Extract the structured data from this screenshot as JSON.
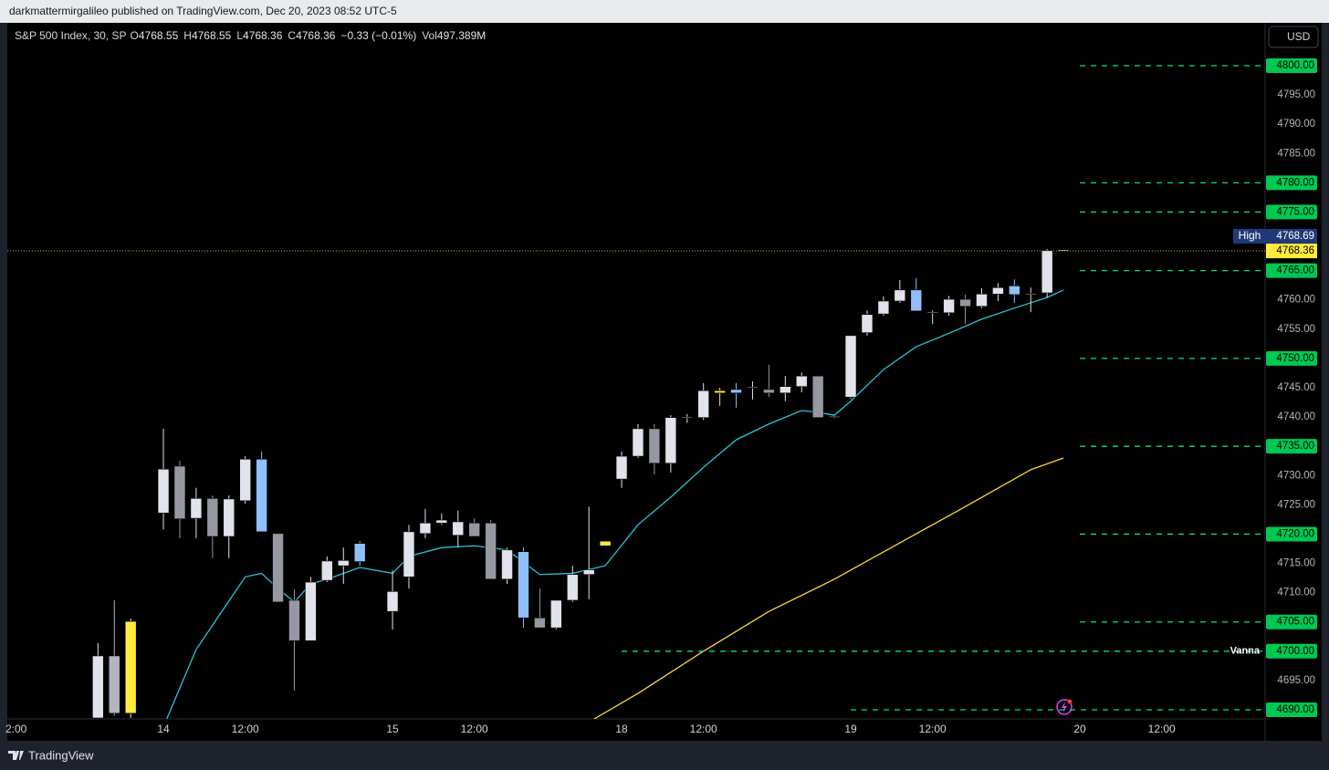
{
  "header": {
    "text": "darkmattermirgalileo published on TradingView.com, Dec 20, 2023 08:52 UTC-5"
  },
  "legend": {
    "symbol": "S&P 500 Index, 30, SP",
    "items": [
      {
        "key": "O",
        "value": 4768.55
      },
      {
        "key": "H",
        "value": 4768.55
      },
      {
        "key": "L",
        "value": 4768.36
      },
      {
        "key": "C",
        "value": 4768.36
      }
    ],
    "change": "−0.33 (−0.01%)",
    "volume_key": "Vol",
    "volume": "497.389M"
  },
  "currency_button": "USD",
  "footer": {
    "brand": "TradingView"
  },
  "chart_data": {
    "type": "candlestick",
    "xlim": [
      -9.54,
      67.32
    ],
    "ylim": [
      4688.44,
      4807.32
    ],
    "xticks": [
      {
        "value": -9,
        "label": "2:00"
      },
      {
        "value": 0,
        "label": "14"
      },
      {
        "value": 5,
        "label": "12:00"
      },
      {
        "value": 14,
        "label": "15"
      },
      {
        "value": 19,
        "label": "12:00"
      },
      {
        "value": 28,
        "label": "18"
      },
      {
        "value": 33,
        "label": "12:00"
      },
      {
        "value": 42,
        "label": "19"
      },
      {
        "value": 47,
        "label": "12:00"
      },
      {
        "value": 56,
        "label": "20"
      },
      {
        "value": 61,
        "label": "12:00"
      }
    ],
    "yticks": [
      {
        "value": 4695,
        "label": "4695.00"
      },
      {
        "value": 4710,
        "label": "4710.00"
      },
      {
        "value": 4715,
        "label": "4715.00"
      },
      {
        "value": 4725,
        "label": "4725.00"
      },
      {
        "value": 4730,
        "label": "4730.00"
      },
      {
        "value": 4740,
        "label": "4740.00"
      },
      {
        "value": 4745,
        "label": "4745.00"
      },
      {
        "value": 4755,
        "label": "4755.00"
      },
      {
        "value": 4760,
        "label": "4760.00"
      },
      {
        "value": 4785,
        "label": "4785.00"
      },
      {
        "value": 4790,
        "label": "4790.00"
      },
      {
        "value": 4795,
        "label": "4795.00"
      }
    ],
    "candles": {
      "x": [
        -4,
        -3,
        -2,
        0,
        1,
        2,
        3,
        4,
        5,
        6,
        7,
        8,
        9,
        10,
        11,
        12,
        14,
        15,
        16,
        17,
        18,
        19,
        20,
        21,
        22,
        23,
        24,
        25,
        26,
        27,
        28,
        29,
        30,
        31,
        32,
        33,
        34,
        35,
        36,
        37,
        38,
        39,
        40,
        41,
        42,
        43,
        44,
        45,
        46,
        47,
        48,
        49,
        50,
        51,
        52,
        53,
        54,
        55
      ],
      "open": [
        4688.6,
        4699.2,
        4689.4,
        4723.6,
        4731.6,
        4722.7,
        4726.1,
        4719.6,
        4725.7,
        4732.8,
        4720.1,
        4708.7,
        4701.8,
        4712.1,
        4714.6,
        4715.3,
        4706.8,
        4712.7,
        4720.1,
        4721.9,
        4719.8,
        4721.9,
        4721.9,
        4712.3,
        4717.0,
        4705.7,
        4704.0,
        4708.7,
        4713.1,
        4718.0,
        4729.4,
        4733.3,
        4738.0,
        4732.1,
        4739.9,
        4739.9,
        4744.1,
        4744.1,
        4745.0,
        4744.7,
        4744.1,
        4745.2,
        4747.0,
        4740.0,
        4743.4,
        4754.4,
        4757.6,
        4759.8,
        4761.7,
        4757.8,
        4757.8,
        4760.1,
        4758.9,
        4761.0,
        4760.9,
        4761.0,
        4761.2,
        4768.55
      ],
      "high": [
        4701.4,
        4708.7,
        4705.6,
        4738.0,
        4732.5,
        4727.9,
        4726.6,
        4726.6,
        4733.3,
        4734.1,
        4720.1,
        4710.6,
        4712.7,
        4716.2,
        4717.7,
        4718.8,
        4713.8,
        4721.6,
        4724.3,
        4723.5,
        4724.0,
        4722.7,
        4722.4,
        4717.7,
        4717.7,
        4710.7,
        4708.7,
        4714.6,
        4724.7,
        4718.8,
        4734.1,
        4738.8,
        4738.8,
        4740.3,
        4740.5,
        4745.8,
        4745.0,
        4745.8,
        4746.1,
        4748.9,
        4747.0,
        4747.6,
        4747.0,
        4740.2,
        4753.9,
        4758.2,
        4760.6,
        4763.4,
        4763.7,
        4758.2,
        4760.7,
        4760.9,
        4762.0,
        4762.9,
        4763.5,
        4762.1,
        4768.7,
        4768.55
      ],
      "low": [
        4688.6,
        4689.0,
        4688.6,
        4720.8,
        4719.3,
        4719.3,
        4715.9,
        4715.9,
        4725.2,
        4720.4,
        4708.4,
        4693.3,
        4701.8,
        4711.8,
        4711.5,
        4714.6,
        4703.7,
        4710.7,
        4719.3,
        4721.6,
        4717.7,
        4719.6,
        4712.3,
        4711.5,
        4704.0,
        4704.0,
        4703.7,
        4708.4,
        4708.9,
        4718.0,
        4727.9,
        4733.0,
        4730.2,
        4730.5,
        4739.0,
        4739.5,
        4741.9,
        4741.6,
        4743.0,
        4743.4,
        4742.7,
        4744.2,
        4739.9,
        4739.8,
        4743.1,
        4753.9,
        4757.3,
        4759.5,
        4758.1,
        4755.9,
        4757.3,
        4755.9,
        4758.6,
        4759.8,
        4759.5,
        4757.9,
        4760.4,
        4768.36
      ],
      "close": [
        4699.2,
        4689.4,
        4705.1,
        4731.1,
        4722.6,
        4726.1,
        4719.6,
        4726.0,
        4732.8,
        4720.4,
        4708.4,
        4701.8,
        4711.8,
        4715.4,
        4715.5,
        4718.4,
        4710.2,
        4720.4,
        4721.9,
        4722.4,
        4722.1,
        4719.6,
        4712.3,
        4717.3,
        4705.7,
        4704.0,
        4708.7,
        4713.1,
        4713.9,
        4718.8,
        4733.3,
        4738.0,
        4732.1,
        4739.9,
        4740.0,
        4744.5,
        4744.5,
        4744.7,
        4745.1,
        4744.1,
        4745.2,
        4747.0,
        4739.9,
        4740.1,
        4753.9,
        4757.5,
        4759.8,
        4761.7,
        4758.1,
        4757.9,
        4760.1,
        4758.9,
        4761.0,
        4762.1,
        4762.4,
        4761.1,
        4768.4,
        4768.36
      ],
      "colors": [
        "#e0e3eb",
        "#b2b5be",
        "#ffeb3b",
        "#e0e3eb",
        "#9598a1",
        "#e0e3eb",
        "#9598a1",
        "#e0e3eb",
        "#e0e3eb",
        "#90bff9",
        "#9598a1",
        "#9598a1",
        "#e0e3eb",
        "#e0e3eb",
        "#e0e3eb",
        "#90bff9",
        "#e0e3eb",
        "#e0e3eb",
        "#e0e3eb",
        "#e0e3eb",
        "#e0e3eb",
        "#9598a1",
        "#9598a1",
        "#e0e3eb",
        "#90bff9",
        "#9598a1",
        "#e0e3eb",
        "#e0e3eb",
        "#e0e3eb",
        "#ffeb3b",
        "#e0e3eb",
        "#e0e3eb",
        "#9598a1",
        "#e0e3eb",
        "#e0e3eb",
        "#e0e3eb",
        "#ffeb3b",
        "#90bff9",
        "#e0e3eb",
        "#9598a1",
        "#e0e3eb",
        "#e0e3eb",
        "#9598a1",
        "#e0e3eb",
        "#e0e3eb",
        "#e0e3eb",
        "#e0e3eb",
        "#e0e3eb",
        "#90bff9",
        "#e0e3eb",
        "#e0e3eb",
        "#9598a1",
        "#e0e3eb",
        "#e0e3eb",
        "#90bff9",
        "#e0e3eb",
        "#e0e3eb",
        "#e0e3eb"
      ]
    },
    "lines": [
      {
        "color": "#26c6da",
        "x": [
          0.2,
          2,
          5,
          6,
          7,
          8,
          9,
          10,
          12,
          14,
          15,
          17,
          19,
          21,
          23,
          25,
          27,
          29,
          31,
          33,
          35,
          37,
          39,
          40,
          41,
          42,
          44,
          46,
          48,
          50,
          52,
          54,
          55
        ],
        "values": [
          4688.4,
          4700.3,
          4712.7,
          4713.3,
          4710.7,
          4708.4,
          4711.5,
          4712.3,
          4714.3,
          4713.3,
          4716.2,
          4717.7,
          4718.0,
          4717.3,
          4713.1,
          4713.3,
          4714.6,
          4721.6,
          4726.3,
          4731.4,
          4736.1,
          4738.8,
          4741.1,
          4740.8,
          4740.3,
          4742.7,
          4748.1,
          4752.0,
          4754.3,
          4756.7,
          4758.6,
          4760.4,
          4761.7
        ]
      },
      {
        "color": "#fdd835",
        "x": [
          26.3,
          29,
          33,
          37,
          41,
          45,
          49,
          53,
          55
        ],
        "values": [
          4688.4,
          4692.8,
          4700.0,
          4706.8,
          4712.3,
          4718.5,
          4724.7,
          4731.0,
          4733.0
        ]
      }
    ],
    "levels": [
      {
        "value": 4800,
        "label": "4800.00",
        "x_start": 56
      },
      {
        "value": 4780,
        "label": "4780.00",
        "x_start": 56
      },
      {
        "value": 4775,
        "label": "4775.00",
        "x_start": 56
      },
      {
        "value": 4765,
        "label": "4765.00",
        "x_start": 56
      },
      {
        "value": 4750,
        "label": "4750.00",
        "x_start": 56
      },
      {
        "value": 4735,
        "label": "4735.00",
        "x_start": 56
      },
      {
        "value": 4720,
        "label": "4720.00",
        "x_start": 56
      },
      {
        "value": 4705,
        "label": "4705.00",
        "x_start": 56
      },
      {
        "value": 4700,
        "label": "4700.00",
        "x_start": 28,
        "name": "Vanna"
      },
      {
        "value": 4690,
        "label": "4690.00",
        "x_start": 42
      }
    ],
    "level_color": "#00e676",
    "high_marker": {
      "name": "High",
      "value": 4768.69,
      "label": "4768.69"
    },
    "last_price": {
      "value": 4768.36,
      "label": "4768.36"
    }
  }
}
